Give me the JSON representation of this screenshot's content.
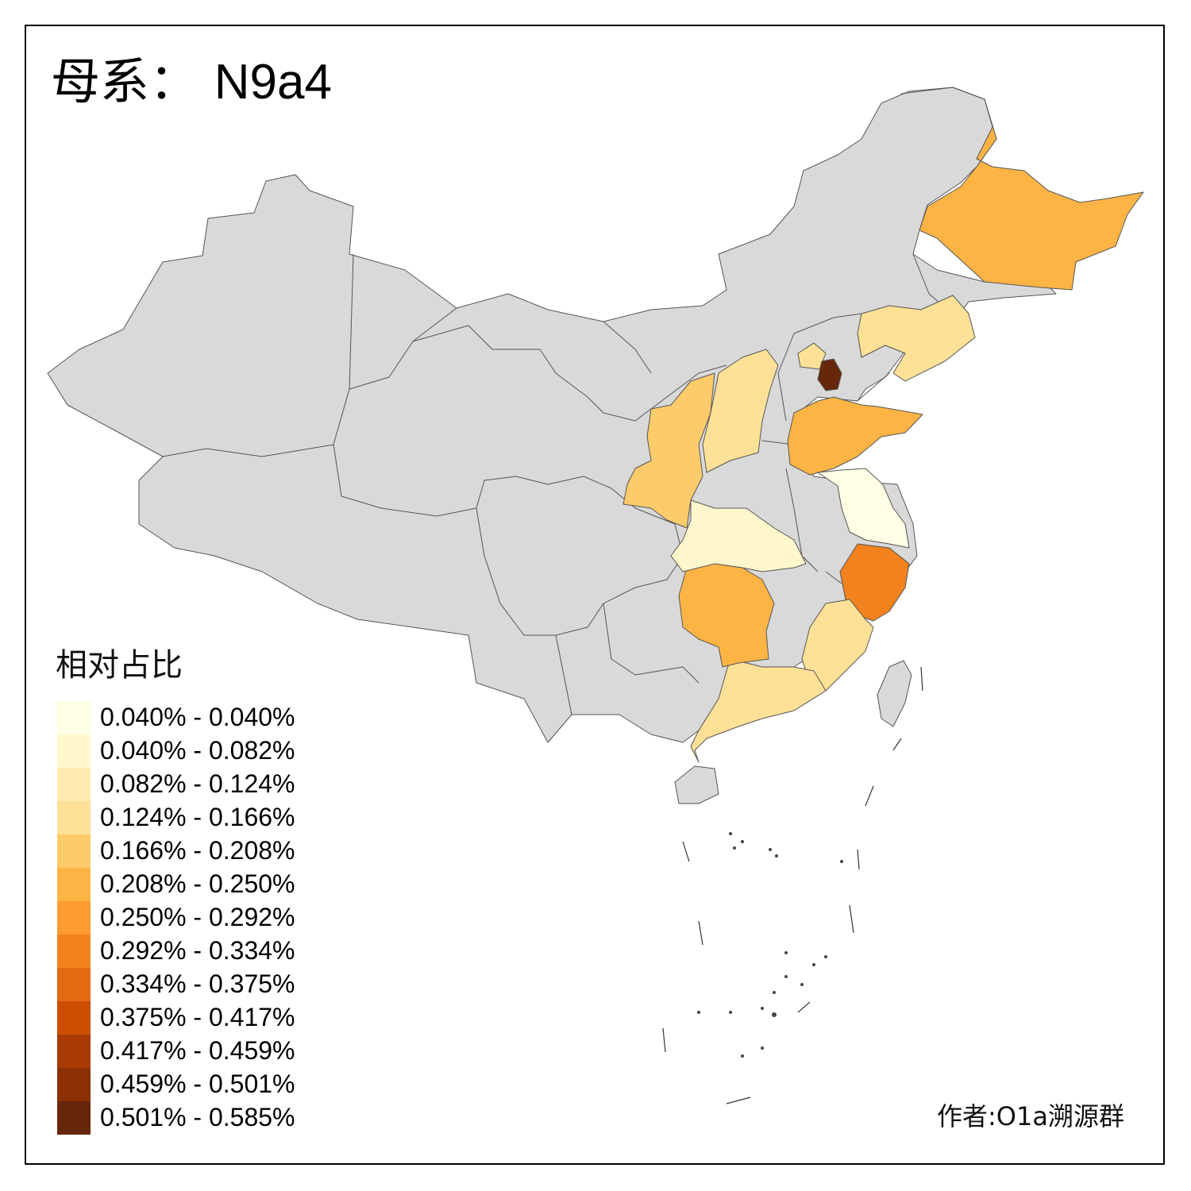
{
  "title_prefix": "母系：",
  "title_haplogroup": "N9a4",
  "legend": {
    "title": "相对占比",
    "items": [
      {
        "label": "0.040% - 0.040%",
        "color": "#FFFFE5"
      },
      {
        "label": "0.040% - 0.082%",
        "color": "#FFF7CC"
      },
      {
        "label": "0.082% - 0.124%",
        "color": "#FEEBB0"
      },
      {
        "label": "0.124% - 0.166%",
        "color": "#FEE196"
      },
      {
        "label": "0.166% - 0.208%",
        "color": "#FECB6B"
      },
      {
        "label": "0.208% - 0.250%",
        "color": "#FEB444"
      },
      {
        "label": "0.250% - 0.292%",
        "color": "#FE9C30"
      },
      {
        "label": "0.292% - 0.334%",
        "color": "#F2821E"
      },
      {
        "label": "0.334% - 0.375%",
        "color": "#E26A12"
      },
      {
        "label": "0.375% - 0.417%",
        "color": "#CC4E02"
      },
      {
        "label": "0.417% - 0.459%",
        "color": "#A83B03"
      },
      {
        "label": "0.459% - 0.501%",
        "color": "#8A3004"
      },
      {
        "label": "0.501% - 0.585%",
        "color": "#66270A"
      }
    ]
  },
  "credit": "作者:O1a溯源群",
  "colors": {
    "no_data": "#D9D9D9",
    "border": "#555555"
  }
}
